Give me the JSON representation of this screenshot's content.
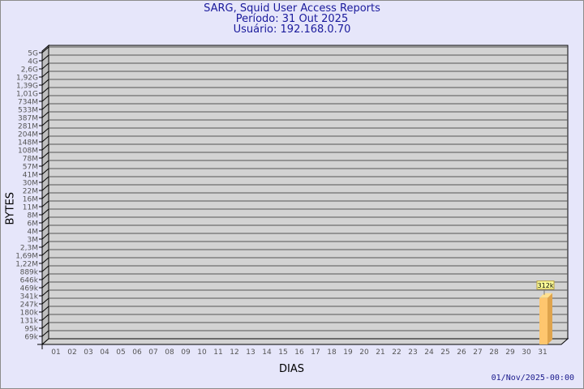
{
  "title": {
    "line1": "SARG, Squid User Access Reports",
    "line2": "Período: 31 Out 2025",
    "line3": "Usuário: 192.168.0.70"
  },
  "timestamp": "01/Nov/2025-00:00",
  "chart_data": {
    "type": "bar",
    "xlabel": "DIAS",
    "ylabel": "BYTES",
    "y_scale": "log",
    "y_ticks": [
      "69k",
      "95k",
      "131k",
      "180k",
      "247k",
      "341k",
      "469k",
      "646k",
      "889k",
      "1,22M",
      "1,69M",
      "2,3M",
      "3M",
      "4M",
      "6M",
      "8M",
      "11M",
      "16M",
      "22M",
      "30M",
      "41M",
      "57M",
      "78M",
      "108M",
      "148M",
      "204M",
      "281M",
      "387M",
      "533M",
      "734M",
      "1,01G",
      "1,39G",
      "1,92G",
      "2,6G",
      "4G",
      "5G"
    ],
    "categories": [
      "01",
      "02",
      "03",
      "04",
      "05",
      "06",
      "07",
      "08",
      "09",
      "10",
      "11",
      "12",
      "13",
      "14",
      "15",
      "16",
      "17",
      "18",
      "19",
      "20",
      "21",
      "22",
      "23",
      "24",
      "25",
      "26",
      "27",
      "28",
      "29",
      "30",
      "31"
    ],
    "values": [
      null,
      null,
      null,
      null,
      null,
      null,
      null,
      null,
      null,
      null,
      null,
      null,
      null,
      null,
      null,
      null,
      null,
      null,
      null,
      null,
      null,
      null,
      null,
      null,
      null,
      null,
      null,
      null,
      null,
      null,
      312000
    ],
    "data_labels": {
      "31": "312k"
    },
    "grid": true,
    "colors": {
      "bar_front": "#ffc66e",
      "bar_side": "#dfa44c",
      "bar_top": "#ffe08f",
      "wall": "#d3d3d3",
      "side_wall": "#bebebe",
      "label_bg": "#ffff99",
      "title": "#1a1a9c"
    }
  }
}
